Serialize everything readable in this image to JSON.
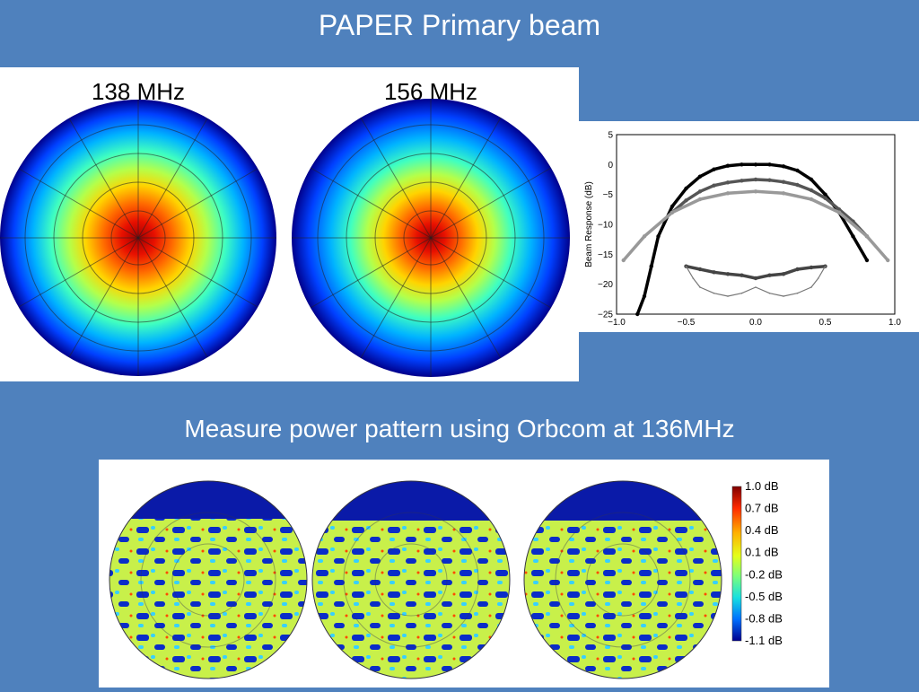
{
  "slide": {
    "title": "PAPER Primary beam",
    "subtitle": "Measure power pattern using Orbcom at 136MHz"
  },
  "beam_models": {
    "labels": [
      "138 MHz",
      "156 MHz"
    ]
  },
  "chart_data": {
    "type": "scatter",
    "title": "",
    "xlabel": "",
    "ylabel": "Beam Response (dB)",
    "xlim": [
      -1.0,
      1.0
    ],
    "ylim": [
      -25,
      5
    ],
    "xticks": [
      "−1.0",
      "−0.5",
      "0.0",
      "0.5",
      "1.0"
    ],
    "yticks": [
      "5",
      "0",
      "−5",
      "−10",
      "−15",
      "−20",
      "−25"
    ],
    "grid": false,
    "series": [
      {
        "color": "#000000",
        "x": [
          -0.85,
          -0.8,
          -0.75,
          -0.7,
          -0.6,
          -0.5,
          -0.4,
          -0.3,
          -0.2,
          -0.1,
          0,
          0.1,
          0.2,
          0.3,
          0.4,
          0.5,
          0.6,
          0.7,
          0.8
        ],
        "y": [
          -25,
          -22,
          -17,
          -12,
          -7,
          -4,
          -2,
          -0.8,
          -0.2,
          0,
          0,
          0,
          -0.3,
          -1,
          -2.5,
          -5,
          -8,
          -12,
          -16
        ]
      },
      {
        "color": "#555555",
        "x": [
          -0.6,
          -0.5,
          -0.4,
          -0.3,
          -0.2,
          -0.1,
          0,
          0.1,
          0.2,
          0.3,
          0.4,
          0.5,
          0.6,
          0.7,
          0.8
        ],
        "y": [
          -8,
          -6,
          -4.5,
          -3.5,
          -3,
          -2.7,
          -2.5,
          -2.6,
          -2.9,
          -3.4,
          -4.3,
          -5.6,
          -7.5,
          -9.5,
          -12
        ]
      },
      {
        "color": "#999999",
        "x": [
          -0.95,
          -0.8,
          -0.6,
          -0.4,
          -0.2,
          0,
          0.2,
          0.4,
          0.6,
          0.8,
          0.95
        ],
        "y": [
          -16,
          -12,
          -8,
          -5.8,
          -4.8,
          -4.5,
          -4.8,
          -5.8,
          -8,
          -12,
          -16
        ]
      },
      {
        "color": "#444444",
        "x": [
          -0.5,
          -0.4,
          -0.3,
          -0.2,
          -0.1,
          0,
          0.1,
          0.2,
          0.3,
          0.4,
          0.5
        ],
        "y": [
          -17,
          -17.5,
          -18,
          -18.3,
          -18.5,
          -19,
          -18.5,
          -18.3,
          -17.5,
          -17.2,
          -17
        ]
      },
      {
        "color": "#777777",
        "x": [
          -0.5,
          -0.45,
          -0.4,
          -0.3,
          -0.2,
          -0.1,
          0,
          0.1,
          0.2,
          0.3,
          0.4,
          0.45,
          0.5
        ],
        "y": [
          -17,
          -19,
          -20.5,
          -21.5,
          -22,
          -21.5,
          -20.5,
          -21.5,
          -22,
          -21.5,
          -20.5,
          -19,
          -17
        ]
      }
    ]
  },
  "measurement": {
    "colorbar_labels": [
      "1.0 dB",
      "0.7 dB",
      "0.4 dB",
      "0.1 dB",
      "-0.2 dB",
      "-0.5 dB",
      "-0.8 dB",
      "-1.1 dB"
    ],
    "colorbar_colors": [
      "#7f0000",
      "#ff2a00",
      "#ffb000",
      "#e4ff1a",
      "#7dff7a",
      "#18e0e0",
      "#0070ff",
      "#000090"
    ]
  }
}
